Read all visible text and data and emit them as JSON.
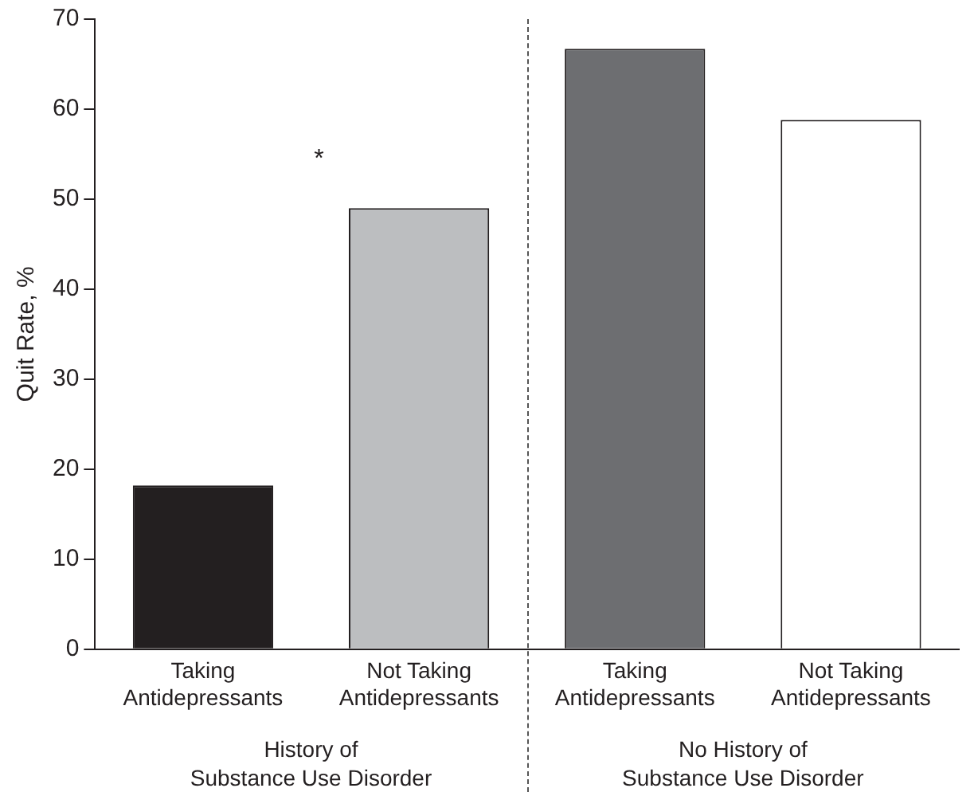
{
  "chart_data": {
    "type": "bar",
    "ylabel": "Quit Rate, %",
    "categories": [
      "Taking\nAntidepressants",
      "Not Taking\nAntidepressants",
      "Taking\nAntidepressants",
      "Not Taking\nAntidepressants"
    ],
    "values": [
      18.2,
      49.0,
      66.7,
      58.8
    ],
    "colors": [
      "#231f20",
      "#bcbec0",
      "#6d6e71",
      "#ffffff"
    ],
    "ylim": [
      0,
      70
    ],
    "yticks": [
      0,
      10,
      20,
      30,
      40,
      50,
      60,
      70
    ],
    "grid": false,
    "legend": false,
    "annotations": [
      "*",
      "History of\nSubstance Use Disorder",
      "No History of\nSubstance Use Disorder"
    ]
  }
}
